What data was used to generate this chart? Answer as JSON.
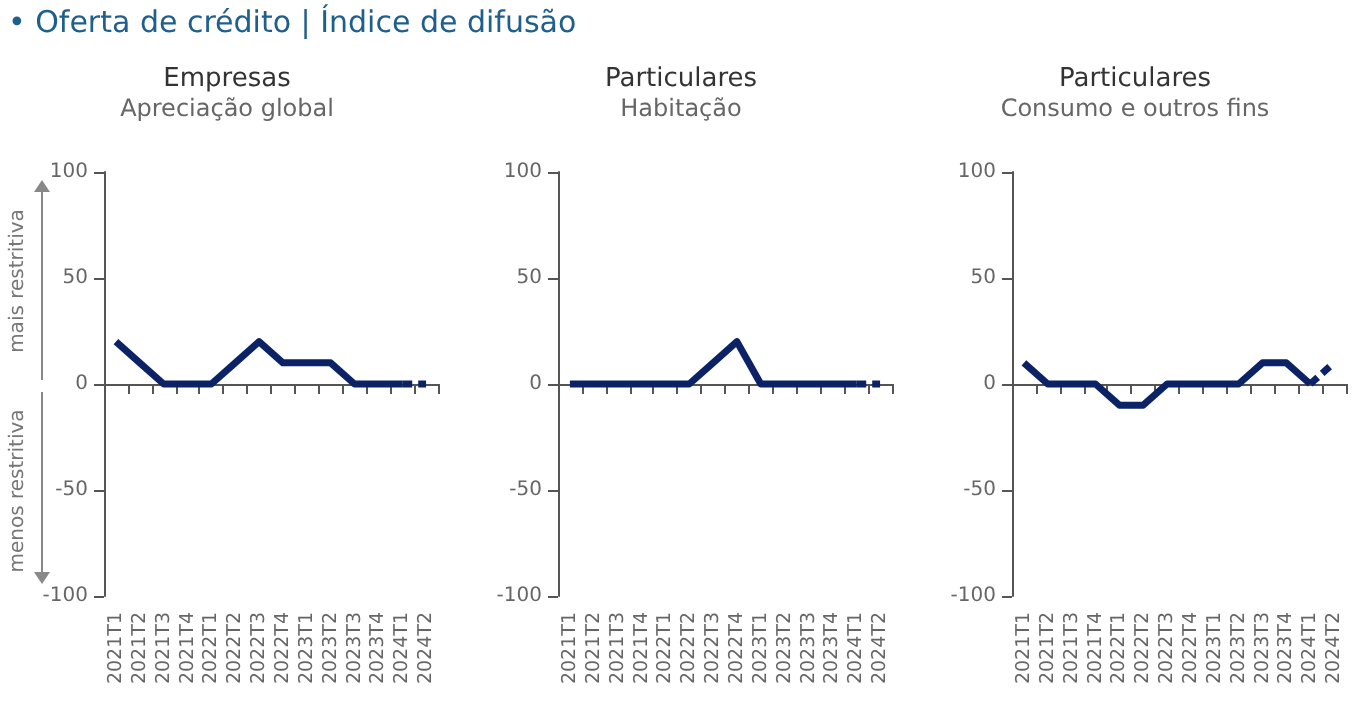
{
  "chart_data": [
    {
      "type": "line",
      "title": "Empresas",
      "subtitle": "Apreciação global",
      "annotations": [
        "• Oferta de crédito | Índice de difusão",
        "mais restritiva",
        "menos restritiva"
      ],
      "categories": [
        "2021T1",
        "2021T2",
        "2021T3",
        "2021T4",
        "2022T1",
        "2022T2",
        "2022T3",
        "2022T4",
        "2023T1",
        "2023T2",
        "2023T3",
        "2023T4",
        "2024T1",
        "2024T2"
      ],
      "series": [
        {
          "color": "#0b2366",
          "line_style": "solid",
          "values": [
            20,
            10,
            0,
            0,
            0,
            10,
            20,
            10,
            10,
            10,
            0,
            0,
            0,
            null
          ]
        },
        {
          "color": "#0b2366",
          "line_style": "dashed",
          "values": [
            null,
            null,
            null,
            null,
            null,
            null,
            null,
            null,
            null,
            null,
            null,
            null,
            0,
            0
          ]
        }
      ],
      "ylim": [
        -100,
        100
      ],
      "yticks": [
        -100,
        -50,
        0,
        50,
        100
      ],
      "marker": "none"
    },
    {
      "type": "line",
      "title": "Particulares",
      "subtitle": "Habitação",
      "categories": [
        "2021T1",
        "2021T2",
        "2021T3",
        "2021T4",
        "2022T1",
        "2022T2",
        "2022T3",
        "2022T4",
        "2023T1",
        "2023T2",
        "2023T3",
        "2023T4",
        "2024T1",
        "2024T2"
      ],
      "series": [
        {
          "color": "#0b2366",
          "line_style": "solid",
          "values": [
            0,
            0,
            0,
            0,
            0,
            0,
            10,
            20,
            0,
            0,
            0,
            0,
            0,
            null
          ]
        },
        {
          "color": "#0b2366",
          "line_style": "dashed",
          "values": [
            null,
            null,
            null,
            null,
            null,
            null,
            null,
            null,
            null,
            null,
            null,
            null,
            0,
            0
          ]
        }
      ],
      "ylim": [
        -100,
        100
      ],
      "yticks": [
        -100,
        -50,
        0,
        50,
        100
      ],
      "marker": "none"
    },
    {
      "type": "line",
      "title": "Particulares",
      "subtitle": "Consumo e outros fins",
      "categories": [
        "2021T1",
        "2021T2",
        "2021T3",
        "2021T4",
        "2022T1",
        "2022T2",
        "2022T3",
        "2022T4",
        "2023T1",
        "2023T2",
        "2023T3",
        "2023T4",
        "2024T1",
        "2024T2"
      ],
      "series": [
        {
          "color": "#0b2366",
          "line_style": "solid",
          "values": [
            10,
            0,
            0,
            0,
            -10,
            -10,
            0,
            0,
            0,
            0,
            10,
            10,
            0,
            null
          ]
        },
        {
          "color": "#0b2366",
          "line_style": "dashed",
          "values": [
            null,
            null,
            null,
            null,
            null,
            null,
            null,
            null,
            null,
            null,
            null,
            null,
            0,
            10
          ]
        }
      ],
      "ylim": [
        -100,
        100
      ],
      "yticks": [
        -100,
        -50,
        0,
        50,
        100
      ],
      "marker": "none"
    }
  ]
}
